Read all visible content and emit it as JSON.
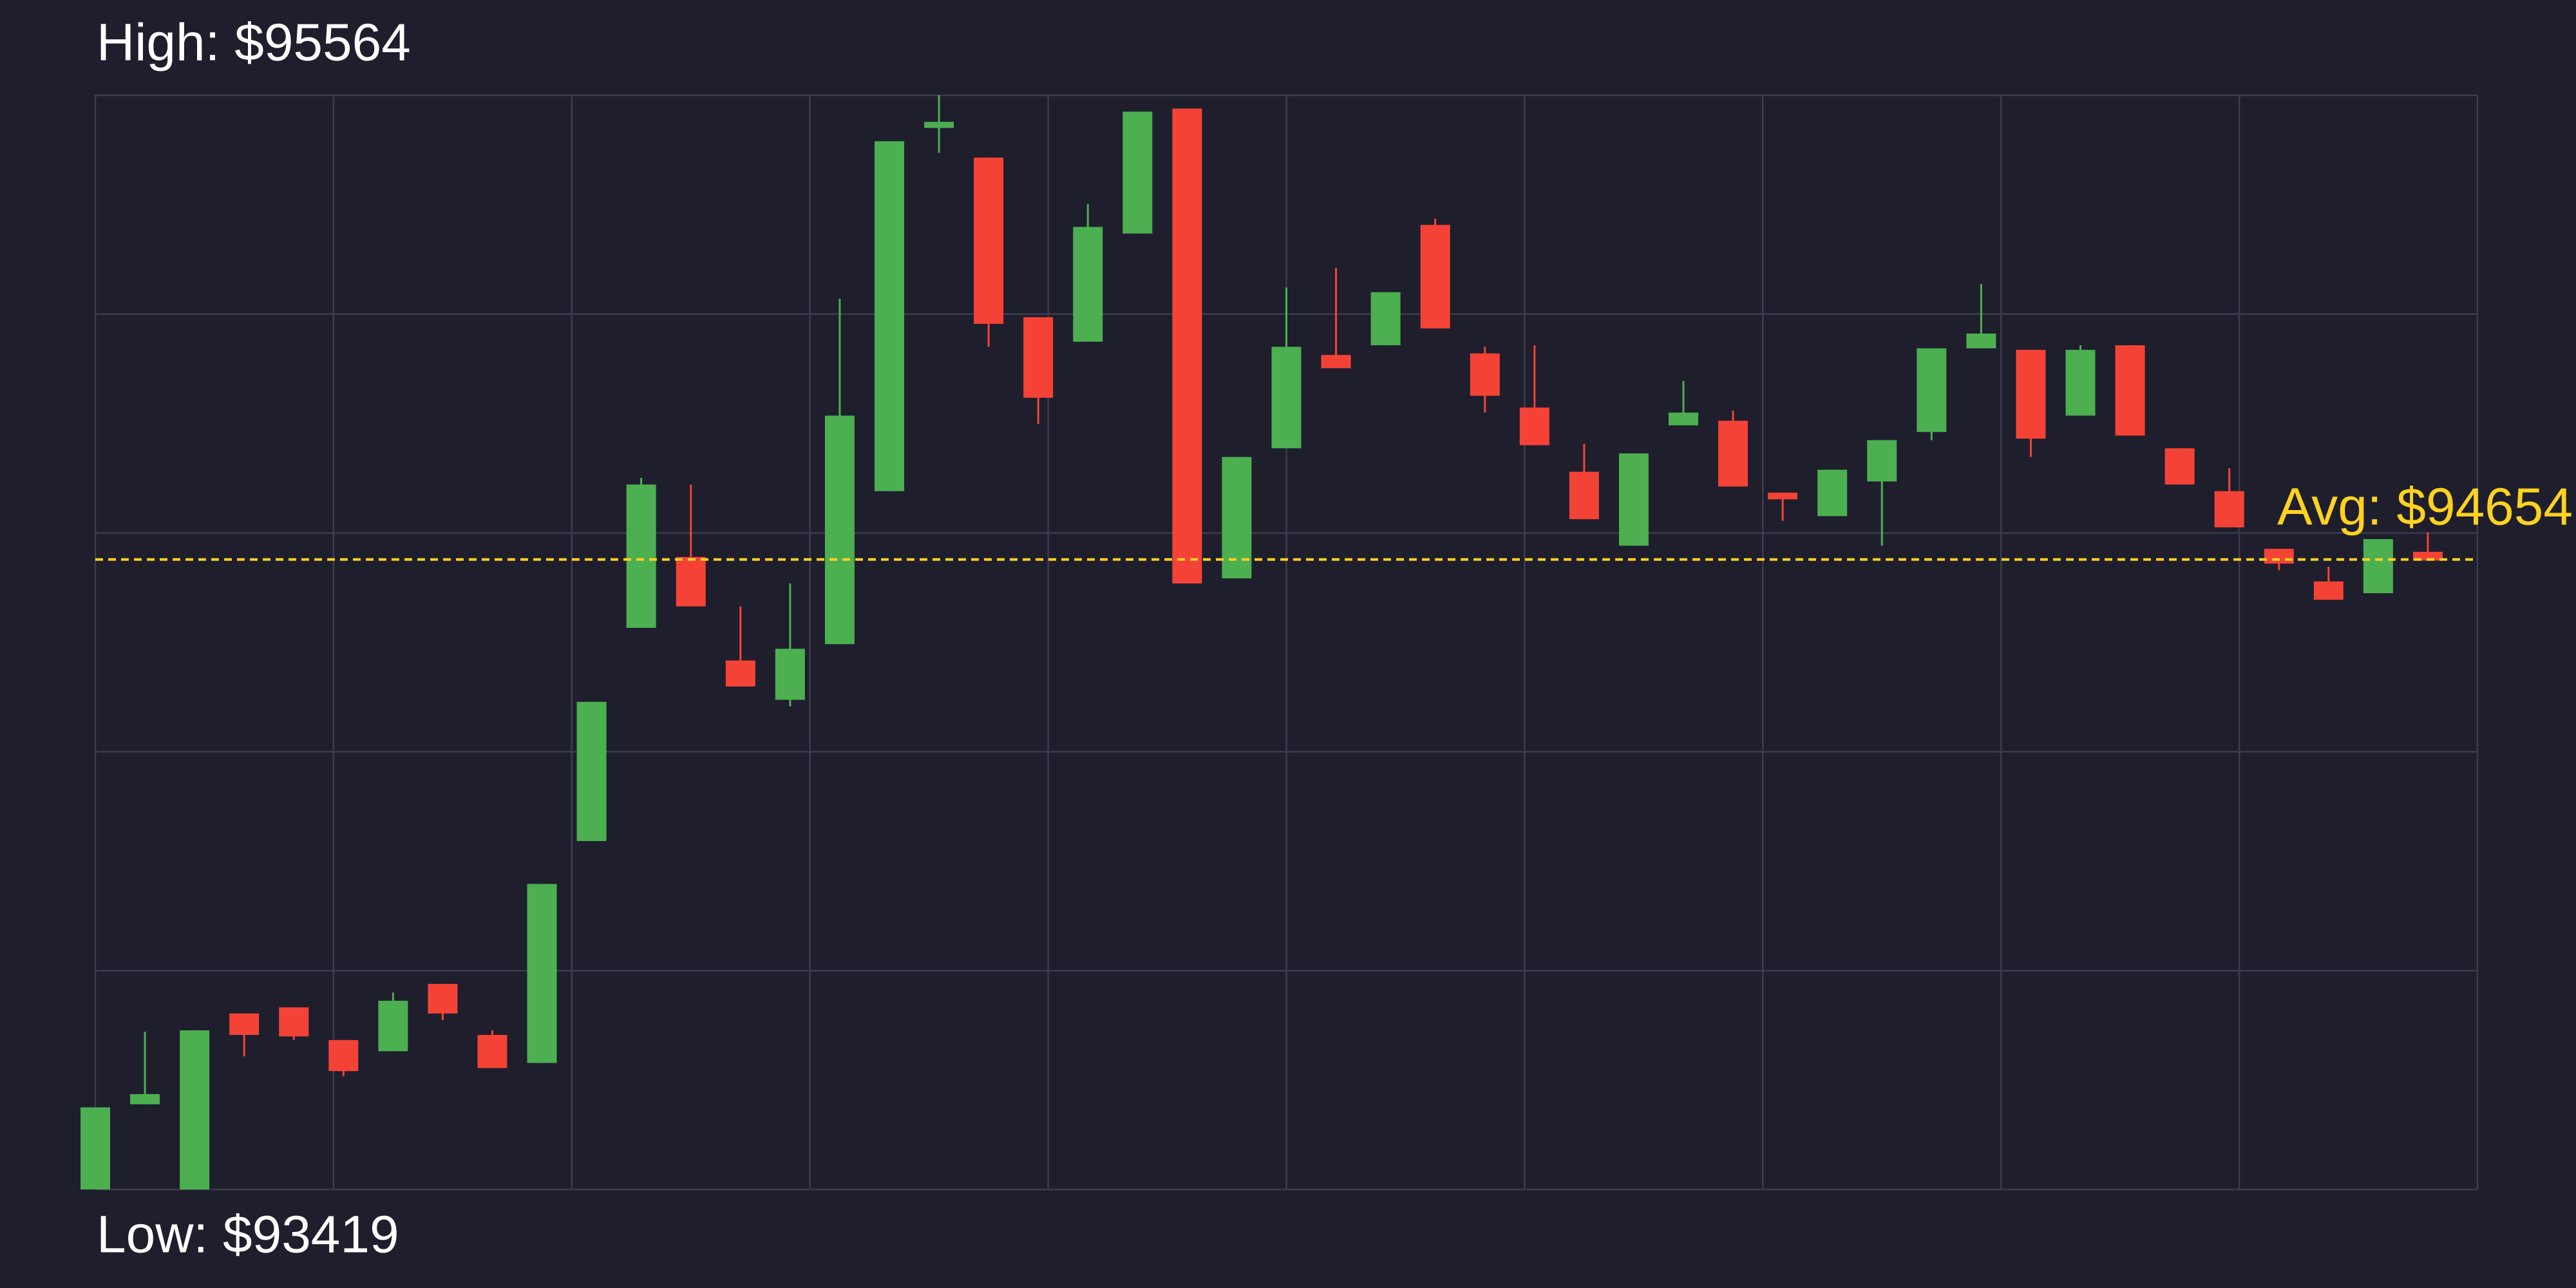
{
  "chart_data": {
    "type": "candlestick",
    "high_label": "High: $95564",
    "low_label": "Low: $93419",
    "avg_label": "Avg: $94654",
    "avg": 94654,
    "open": [
      93419,
      93586,
      93419,
      93764,
      93776,
      93712,
      93690,
      93822,
      93722,
      93667,
      94102,
      94520,
      94659,
      94456,
      94379,
      94488,
      94788,
      95500,
      95442,
      95129,
      95081,
      95293,
      95538,
      94617,
      94872,
      95055,
      95074,
      95310,
      95058,
      94952,
      94826,
      94681,
      94917,
      94926,
      94785,
      94739,
      94807,
      94904,
      95068,
      95065,
      94936,
      95074,
      94872,
      94788,
      94675,
      94611,
      94588,
      94669
    ],
    "high": [
      93580,
      93728,
      93731,
      93764,
      93776,
      93712,
      93805,
      93822,
      93731,
      94018,
      94375,
      94814,
      94801,
      94562,
      94607,
      95165,
      95474,
      95564,
      95442,
      95129,
      95351,
      95532,
      95538,
      94855,
      95187,
      95226,
      95178,
      95322,
      95071,
      95074,
      94881,
      94862,
      95004,
      94946,
      94785,
      94830,
      94888,
      95068,
      95194,
      95065,
      95074,
      95074,
      94872,
      94833,
      94675,
      94640,
      94694,
      94707
    ],
    "low": [
      93419,
      93586,
      93419,
      93680,
      93712,
      93641,
      93690,
      93751,
      93657,
      93667,
      94102,
      94520,
      94562,
      94405,
      94366,
      94488,
      94788,
      95451,
      95071,
      94920,
      95081,
      95293,
      94607,
      94617,
      94872,
      95029,
      95074,
      95107,
      94942,
      94878,
      94733,
      94681,
      94917,
      94797,
      94730,
      94739,
      94681,
      94888,
      95068,
      94855,
      94936,
      94897,
      94801,
      94717,
      94633,
      94575,
      94588,
      94652
    ],
    "close": [
      93580,
      93606,
      93731,
      93722,
      93719,
      93651,
      93789,
      93764,
      93657,
      94018,
      94375,
      94801,
      94562,
      94405,
      94479,
      94936,
      95474,
      95512,
      95116,
      94971,
      95306,
      95532,
      94607,
      94855,
      95071,
      95029,
      95178,
      95107,
      94975,
      94878,
      94733,
      94862,
      94942,
      94797,
      94772,
      94830,
      94888,
      95068,
      95097,
      94891,
      95065,
      94897,
      94801,
      94717,
      94646,
      94575,
      94694,
      94652
    ],
    "up_color": "#4caf50",
    "down_color": "#f44336",
    "avg_color": "#ffd21f",
    "grid": true,
    "xlim": [
      0,
      48
    ],
    "xticks": [
      0,
      4.8,
      9.6,
      14.4,
      19.2,
      24,
      28.8,
      33.6,
      38.4,
      43.2,
      48
    ],
    "ylim": [
      93419,
      95564
    ],
    "yticks": [
      93419,
      93848,
      94277,
      94706,
      95135,
      95564
    ]
  }
}
